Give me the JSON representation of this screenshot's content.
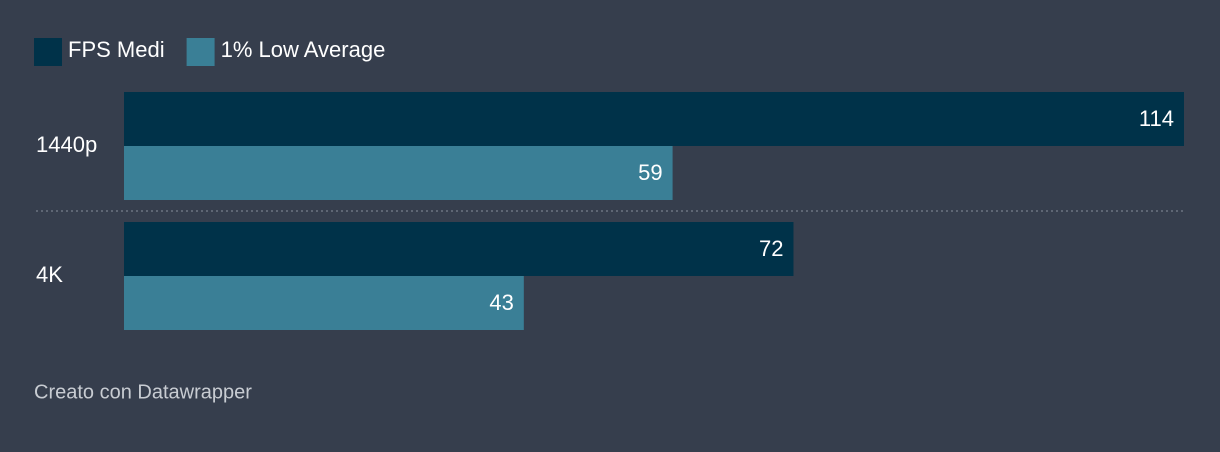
{
  "chart_data": {
    "type": "bar",
    "orientation": "horizontal",
    "categories": [
      "1440p",
      "4K"
    ],
    "series": [
      {
        "name": "FPS Medi",
        "color": "#003249",
        "values": [
          114,
          72
        ]
      },
      {
        "name": "1% Low Average",
        "color": "#3a7f96",
        "values": [
          59,
          43
        ]
      }
    ],
    "xlim": [
      0,
      114
    ],
    "credit": "Creato con Datawrapper"
  }
}
